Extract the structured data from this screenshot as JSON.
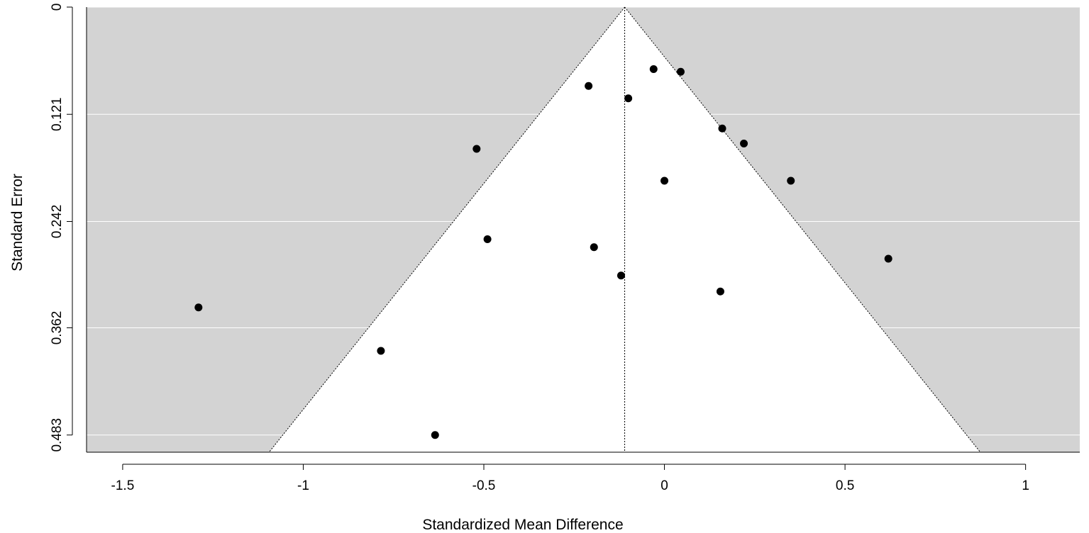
{
  "chart_data": {
    "type": "scatter",
    "subtype": "funnel-plot",
    "title": "",
    "xlabel": "Standardized Mean Difference",
    "ylabel": "Standard Error",
    "xlim": [
      -1.6,
      1.15
    ],
    "ylim": [
      0,
      0.5024
    ],
    "y_reversed": true,
    "grid": true,
    "x_ticks": [
      -1.5,
      -1,
      -0.5,
      0,
      0.5,
      1
    ],
    "x_tick_labels": [
      "-1.5",
      "-1",
      "-0.5",
      "0",
      "0.5",
      "1"
    ],
    "y_ticks": [
      0,
      0.121,
      0.242,
      0.362,
      0.483
    ],
    "y_tick_labels": [
      "0",
      "0.121",
      "0.242",
      "0.362",
      "0.483"
    ],
    "summary_estimate": -0.11,
    "funnel_multiplier": 1.96,
    "colors": {
      "panel": "#d3d3d3",
      "funnel": "#ffffff",
      "grid": "#ffffff",
      "points": "#000000"
    },
    "points": [
      {
        "x": -0.03,
        "y": 0.07
      },
      {
        "x": 0.045,
        "y": 0.073
      },
      {
        "x": -0.21,
        "y": 0.089
      },
      {
        "x": -0.1,
        "y": 0.103
      },
      {
        "x": 0.16,
        "y": 0.137
      },
      {
        "x": 0.22,
        "y": 0.154
      },
      {
        "x": -0.52,
        "y": 0.16
      },
      {
        "x": 0.0,
        "y": 0.196
      },
      {
        "x": 0.35,
        "y": 0.196
      },
      {
        "x": -0.49,
        "y": 0.262
      },
      {
        "x": -0.195,
        "y": 0.271
      },
      {
        "x": 0.62,
        "y": 0.284
      },
      {
        "x": -0.12,
        "y": 0.303
      },
      {
        "x": 0.155,
        "y": 0.321
      },
      {
        "x": -1.29,
        "y": 0.339
      },
      {
        "x": -0.785,
        "y": 0.388
      },
      {
        "x": -0.635,
        "y": 0.483
      }
    ]
  }
}
